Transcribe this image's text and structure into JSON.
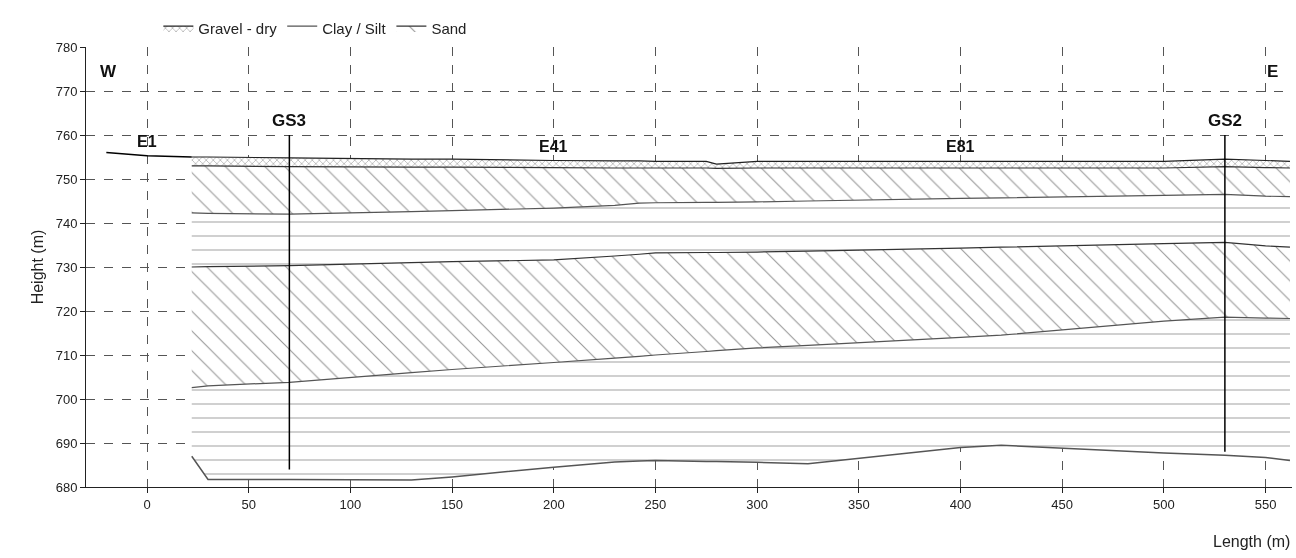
{
  "chart_data": {
    "type": "area",
    "xlabel": "Length (m)",
    "ylabel": "Height (m)",
    "xlim": [
      -30,
      563
    ],
    "ylim": [
      680,
      780
    ],
    "xticks": [
      0,
      50,
      100,
      150,
      200,
      250,
      300,
      350,
      400,
      450,
      500,
      550
    ],
    "yticks": [
      680,
      690,
      700,
      710,
      720,
      730,
      740,
      750,
      760,
      770,
      780
    ],
    "grid": true,
    "legend": "top",
    "marker": "none",
    "line_style": "solid",
    "series": [
      {
        "type": "line",
        "color": "#555555",
        "x": [
          22,
          30,
          70,
          130,
          150,
          200,
          230,
          242,
          250,
          275,
          280,
          300,
          325,
          400,
          420,
          500,
          530,
          550,
          562
        ],
        "values": [
          687,
          681.7,
          681.7,
          681.6,
          682.3,
          684.5,
          685.7,
          685.9,
          686,
          685.8,
          685.8,
          685.6,
          685.3,
          689,
          689.5,
          687.7,
          687.2,
          686.7,
          686
        ]
      },
      {
        "color": "#555555",
        "x": [
          22,
          30,
          70,
          130,
          150,
          200,
          230,
          242,
          250,
          275,
          280,
          300,
          325,
          400,
          420,
          500,
          530,
          550,
          562
        ],
        "values": [
          702.6,
          703,
          703.8,
          706,
          706.7,
          708.3,
          709.3,
          709.7,
          710,
          710.8,
          711,
          711.6,
          712.2,
          714,
          714.5,
          717.7,
          718.6,
          718.4,
          718.3
        ]
      },
      {
        "name": "Sand",
        "color": "#333333",
        "x": [
          22,
          30,
          70,
          130,
          150,
          200,
          230,
          242,
          250,
          275,
          280,
          300,
          325,
          400,
          420,
          500,
          530,
          550,
          562
        ],
        "values": [
          730,
          730.1,
          730.3,
          731,
          731.2,
          731.6,
          732.5,
          732.9,
          733.2,
          733.3,
          733.3,
          733.4,
          733.6,
          734.3,
          734.5,
          735.3,
          735.6,
          734.8,
          734.5
        ]
      },
      {
        "name": "Clay / Silt",
        "color": "#555555",
        "x": [
          22,
          30,
          70,
          130,
          150,
          200,
          230,
          242,
          250,
          275,
          280,
          300,
          325,
          400,
          420,
          500,
          530,
          550,
          562
        ],
        "values": [
          742.3,
          742.2,
          742,
          742.6,
          742.8,
          743.4,
          744,
          744.5,
          744.6,
          744.7,
          744.7,
          744.8,
          745,
          745.6,
          745.7,
          746.3,
          746.5,
          746.1,
          746
        ]
      },
      {
        "color": "#333333",
        "x": [
          22,
          30,
          70,
          130,
          150,
          200,
          230,
          242,
          250,
          275,
          280,
          300,
          325,
          400,
          420,
          500,
          530,
          550,
          562
        ],
        "values": [
          753,
          753,
          752.8,
          752.7,
          752.7,
          752.6,
          752.5,
          752.5,
          752.5,
          752.5,
          752.4,
          752.5,
          752.5,
          752.5,
          752.5,
          752.5,
          752.8,
          752.6,
          752.5
        ]
      },
      {
        "name": "Gravel - dry",
        "color": "#222222",
        "x": [
          22,
          30,
          70,
          130,
          150,
          200,
          230,
          242,
          250,
          275,
          280,
          300,
          325,
          400,
          420,
          500,
          530,
          550,
          562
        ],
        "values": [
          755,
          755,
          754.8,
          754.5,
          754.5,
          754.2,
          754.1,
          754.1,
          754,
          754,
          753.4,
          754,
          754,
          754,
          754,
          754,
          754.5,
          754.2,
          754
        ]
      },
      {
        "type": "line",
        "color": "#000000",
        "x": [
          -20,
          0,
          22
        ],
        "values": [
          756,
          755.3,
          755
        ]
      },
      {
        "type": "line",
        "name": "GS3",
        "color": "#000000",
        "x": [
          70,
          70
        ],
        "values": [
          760,
          684
        ]
      },
      {
        "type": "line",
        "name": "GS2",
        "color": "#000000",
        "x": [
          530,
          530
        ],
        "values": [
          760,
          688
        ]
      }
    ],
    "annotations": [
      "W",
      "E",
      {
        "text": "E1",
        "x": 0,
        "y": 755.3
      },
      {
        "text": "E41",
        "x": 200,
        "y": 754.2
      },
      {
        "text": "E81",
        "x": 400,
        "y": 754
      }
    ]
  }
}
